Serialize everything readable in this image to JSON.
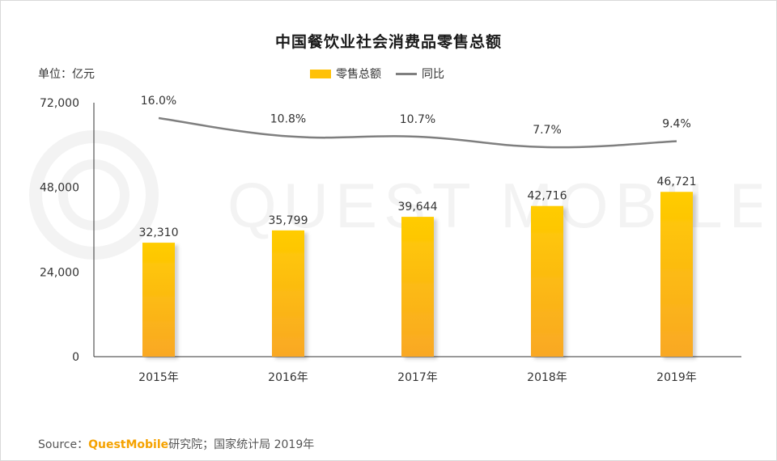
{
  "title": "中国餐饮业社会消费品零售总额",
  "unit_label": "单位：亿元",
  "legend": {
    "bar_label": "零售总额",
    "line_label": "同比"
  },
  "watermark": "QUEST MOBILE",
  "source": {
    "prefix": "Source：",
    "brand": "QuestMobile",
    "suffix": "研究院；国家统计局 2019年"
  },
  "colors": {
    "bar_top": "#ffcc00",
    "bar_bottom": "#f9a825",
    "line": "#7f7f7f",
    "axis": "#333333"
  },
  "chart_data": {
    "type": "bar",
    "categories": [
      "2015年",
      "2016年",
      "2017年",
      "2018年",
      "2019年"
    ],
    "series": [
      {
        "name": "零售总额",
        "type": "bar",
        "values": [
          32310,
          35799,
          39644,
          42716,
          46721
        ],
        "labels": [
          "32,310",
          "35,799",
          "39,644",
          "42,716",
          "46,721"
        ]
      },
      {
        "name": "同比",
        "type": "line",
        "values": [
          16.0,
          10.8,
          10.7,
          7.7,
          9.4
        ],
        "labels": [
          "16.0%",
          "10.8%",
          "10.7%",
          "7.7%",
          "9.4%"
        ]
      }
    ],
    "ylim": [
      0,
      72000
    ],
    "yticks": [
      0,
      24000,
      48000,
      72000
    ],
    "ytick_labels": [
      "0",
      "24,000",
      "48,000",
      "72,000"
    ],
    "xlabel": "",
    "ylabel": "",
    "grid": false,
    "legend_position": "top"
  }
}
